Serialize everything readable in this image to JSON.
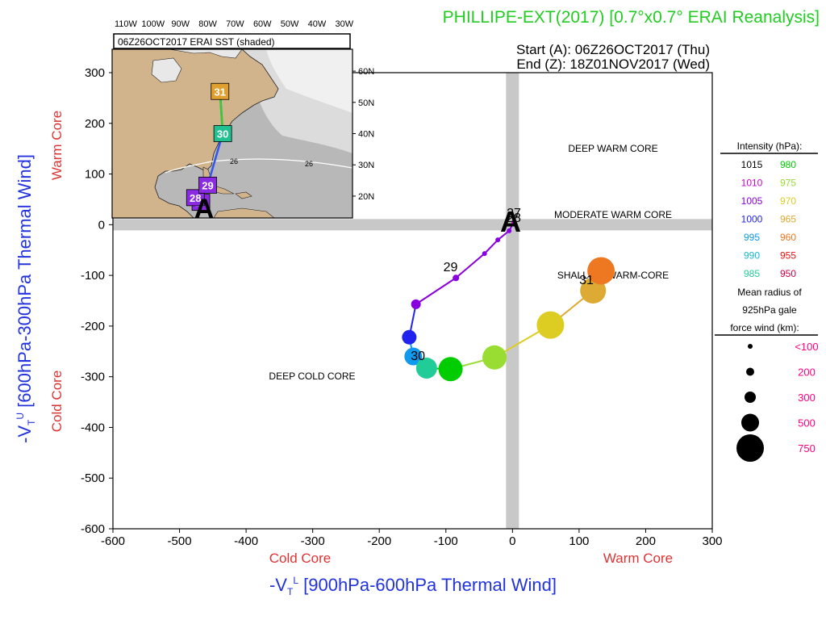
{
  "header": {
    "title": "PHILLIPE-EXT(2017) [0.7°x0.7° ERAI Reanalysis]",
    "start_label": "Start (A): 06Z26OCT2017 (Thu)",
    "end_label": "End (Z): 18Z01NOV2017 (Wed)"
  },
  "colors": {
    "title": "#22cc22",
    "x_axis_label": "#2233dd",
    "y_axis_label": "#2233dd",
    "core_label": "#dd3333",
    "intensity_legend_text": "#000000",
    "radius_values": "#ff0080",
    "sst_land": "#d2b48c",
    "sst_ocean_warm": "#c0c0c0",
    "sst_ocean_cold": "#ffffff",
    "quadrant_band": "#c8c8c8"
  },
  "inset_map": {
    "title": "06Z26OCT2017 ERAI SST (shaded)",
    "lon_labels": [
      "110W",
      "100W",
      "90W",
      "80W",
      "70W",
      "60W",
      "50W",
      "40W",
      "30W"
    ],
    "lat_labels": [
      "60N",
      "50N",
      "40N",
      "30N",
      "20N"
    ],
    "sst_contour_label": "26",
    "start_marker": "A",
    "track": [
      {
        "label": "27",
        "color": "#8a2be2",
        "lon": -82.5,
        "lat": 18.0
      },
      {
        "label": "28",
        "color": "#8a2be2",
        "lon": -84.5,
        "lat": 19.5
      },
      {
        "label": "29",
        "color": "#8a2be2",
        "lon": -80.0,
        "lat": 23.5
      },
      {
        "label": "30",
        "color": "#20c090",
        "lon": -74.5,
        "lat": 40.0
      },
      {
        "label": "31",
        "color": "#e0a030",
        "lon": -75.5,
        "lat": 53.5
      }
    ]
  },
  "quadrant_labels": {
    "deep_warm": "DEEP WARM CORE",
    "moderate_warm": "MODERATE WARM CORE",
    "shallow_warm": "SHALLOW WARM-CORE",
    "deep_cold": "DEEP COLD CORE"
  },
  "legend": {
    "intensity_title": "Intensity (hPa):",
    "intensity_pairs": [
      [
        {
          "v": "1015",
          "c": "#000000"
        },
        {
          "v": "980",
          "c": "#00cc00"
        }
      ],
      [
        {
          "v": "1010",
          "c": "#cc00cc"
        },
        {
          "v": "975",
          "c": "#99dd33"
        }
      ],
      [
        {
          "v": "1005",
          "c": "#8800dd"
        },
        {
          "v": "970",
          "c": "#ddcc22"
        }
      ],
      [
        {
          "v": "1000",
          "c": "#2222ee"
        },
        {
          "v": "965",
          "c": "#ddaa33"
        }
      ],
      [
        {
          "v": "995",
          "c": "#1199ee"
        },
        {
          "v": "960",
          "c": "#ee7722"
        }
      ],
      [
        {
          "v": "990",
          "c": "#11bbcc"
        },
        {
          "v": "955",
          "c": "#ee1111"
        }
      ],
      [
        {
          "v": "985",
          "c": "#22cc99"
        },
        {
          "v": "950",
          "c": "#cc0044"
        }
      ]
    ],
    "radius_title_1": "Mean radius of",
    "radius_title_2": "925hPa gale",
    "radius_title_3": "force wind (km):",
    "radius_items": [
      {
        "value": "<100",
        "r": 3
      },
      {
        "value": "200",
        "r": 5
      },
      {
        "value": "300",
        "r": 7
      },
      {
        "value": "500",
        "r": 11
      },
      {
        "value": "750",
        "r": 17
      }
    ]
  },
  "chart_data": {
    "type": "scatter",
    "title": "PHILLIPE-EXT(2017) [0.7°x0.7° ERAI Reanalysis]",
    "xlabel": "-V_T^L [900hPa-600hPa Thermal Wind]",
    "ylabel": "-V_T^U [600hPa-300hPa Thermal Wind]",
    "x_range_labels": {
      "low": "Cold Core",
      "high": "Warm Core"
    },
    "y_range_labels": {
      "low": "Cold Core",
      "high": "Warm Core"
    },
    "xlim": [
      -600,
      300
    ],
    "ylim": [
      -600,
      300
    ],
    "x_ticks": [
      -600,
      -500,
      -400,
      -300,
      -200,
      -100,
      0,
      100,
      200,
      300
    ],
    "y_ticks": [
      300,
      200,
      100,
      0,
      -100,
      -200,
      -300,
      -400,
      -500,
      -600
    ],
    "grid": false,
    "start_marker": "A",
    "trajectory": [
      {
        "x": 2,
        "y": 5,
        "color": "#cc00cc",
        "r": 3
      },
      {
        "x": -5,
        "y": -12,
        "color": "#8800dd",
        "r": 3
      },
      {
        "x": -22,
        "y": -30,
        "color": "#8800dd",
        "r": 3
      },
      {
        "x": -42,
        "y": -57,
        "color": "#8800dd",
        "r": 3
      },
      {
        "x": -85,
        "y": -105,
        "color": "#8800dd",
        "r": 4
      },
      {
        "x": -145,
        "y": -157,
        "color": "#8800dd",
        "r": 6
      },
      {
        "x": -155,
        "y": -222,
        "color": "#2222ee",
        "r": 9
      },
      {
        "x": -149,
        "y": -260,
        "color": "#1199ee",
        "r": 11
      },
      {
        "x": -129,
        "y": -283,
        "color": "#22cc99",
        "r": 13
      },
      {
        "x": -93,
        "y": -285,
        "color": "#00cc00",
        "r": 15
      },
      {
        "x": -27,
        "y": -262,
        "color": "#99dd33",
        "r": 15
      },
      {
        "x": 57,
        "y": -198,
        "color": "#ddcc22",
        "r": 17
      },
      {
        "x": 121,
        "y": -130,
        "color": "#ddaa33",
        "r": 16
      },
      {
        "x": 133,
        "y": -91,
        "color": "#ee7722",
        "r": 17
      }
    ],
    "day_labels": [
      {
        "label": "27",
        "x": 2,
        "y": 15
      },
      {
        "label": "28",
        "x": 2,
        "y": 5
      },
      {
        "label": "29",
        "x": -93,
        "y": -92
      },
      {
        "label": "30",
        "x": -142,
        "y": -267
      },
      {
        "label": "31",
        "x": 111,
        "y": -117
      }
    ]
  }
}
